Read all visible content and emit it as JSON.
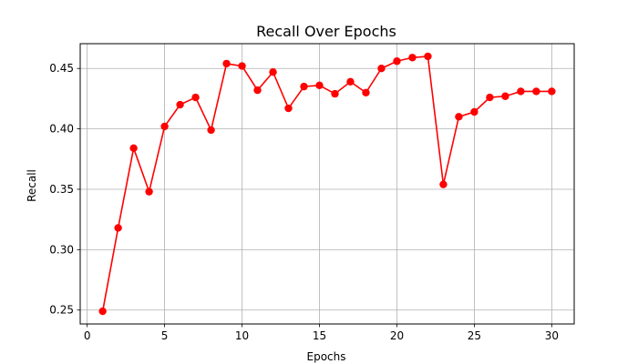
{
  "chart_data": {
    "type": "line",
    "title": "Recall Over Epochs",
    "xlabel": "Epochs",
    "ylabel": "Recall",
    "xlim": [
      -0.45,
      31.45
    ],
    "ylim": [
      0.2385,
      0.4705
    ],
    "xticks": [
      0,
      5,
      10,
      15,
      20,
      25,
      30
    ],
    "yticks": [
      0.25,
      0.3,
      0.35,
      0.4,
      0.45
    ],
    "grid": true,
    "line_color": "#ff0000",
    "marker": "circle",
    "series": [
      {
        "x": [
          1,
          2,
          3,
          4,
          5,
          6,
          7,
          8,
          9,
          10,
          11,
          12,
          13,
          14,
          15,
          16,
          17,
          18,
          19,
          20,
          21,
          22,
          23,
          24,
          25,
          26,
          27,
          28,
          29,
          30
        ],
        "values": [
          0.249,
          0.318,
          0.384,
          0.348,
          0.402,
          0.42,
          0.426,
          0.399,
          0.454,
          0.452,
          0.432,
          0.447,
          0.417,
          0.435,
          0.436,
          0.429,
          0.439,
          0.43,
          0.45,
          0.456,
          0.459,
          0.46,
          0.354,
          0.41,
          0.414,
          0.426,
          0.427,
          0.431,
          0.431,
          0.431
        ]
      }
    ]
  }
}
